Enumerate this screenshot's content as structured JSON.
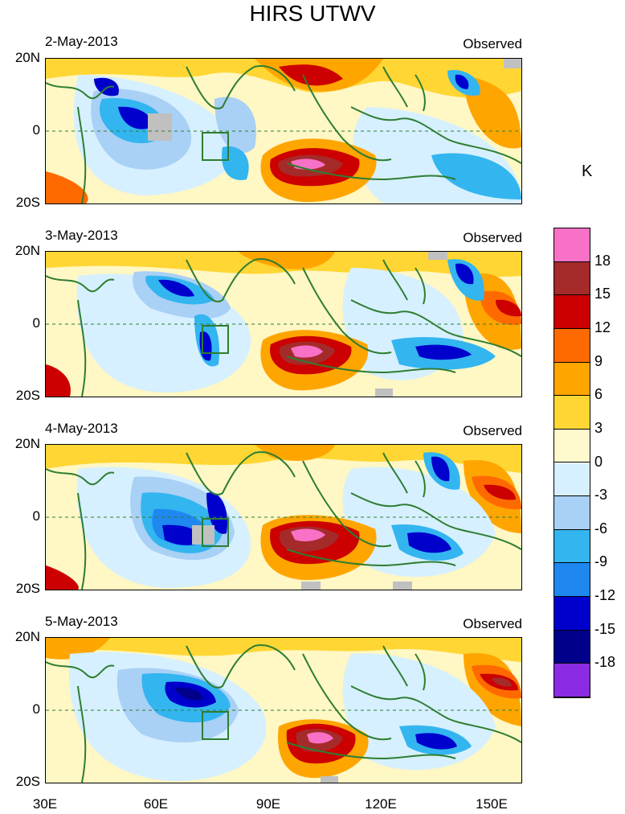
{
  "title": "HIRS UTWV",
  "unit": "K",
  "panels": [
    {
      "date": "2-May-2013",
      "label": "Observed"
    },
    {
      "date": "3-May-2013",
      "label": "Observed"
    },
    {
      "date": "4-May-2013",
      "label": "Observed"
    },
    {
      "date": "5-May-2013",
      "label": "Observed"
    }
  ],
  "lat_labels": [
    "20N",
    "0",
    "20S"
  ],
  "lon_labels": [
    "30E",
    "60E",
    "90E",
    "120E",
    "150E"
  ],
  "colorbar": {
    "colors": [
      "#f771c6",
      "#a52a2a",
      "#cc0000",
      "#ff6a00",
      "#ffa500",
      "#ffd633",
      "#fffacd",
      "#d6f0ff",
      "#a9d0f5",
      "#33b5f0",
      "#1e88f0",
      "#0000cd",
      "#00008b",
      "#8b2be2"
    ],
    "ticks": [
      "18",
      "15",
      "12",
      "9",
      "6",
      "3",
      "0",
      "-3",
      "-6",
      "-9",
      "-12",
      "-15",
      "-18"
    ]
  }
}
